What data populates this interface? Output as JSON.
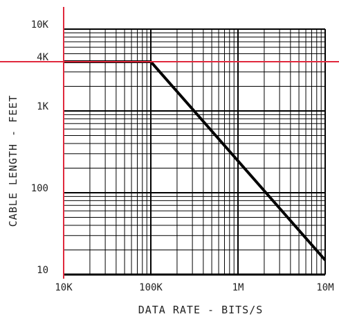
{
  "chart_data": {
    "type": "line",
    "title": "",
    "xlabel": "DATA RATE  -  BITS/S",
    "ylabel": "CABLE LENGTH - FEET",
    "xscale": "log",
    "yscale": "log",
    "xlim": [
      10000,
      10000000
    ],
    "ylim": [
      10,
      10000
    ],
    "grid": true,
    "x_tick_labels": [
      {
        "value": 10000,
        "label": "10K"
      },
      {
        "value": 100000,
        "label": "100K"
      },
      {
        "value": 1000000,
        "label": "1M"
      },
      {
        "value": 10000000,
        "label": "10M"
      }
    ],
    "y_tick_labels": [
      {
        "value": 10,
        "label": "10"
      },
      {
        "value": 100,
        "label": "100"
      },
      {
        "value": 1000,
        "label": "1K"
      },
      {
        "value": 4000,
        "label": "4K"
      },
      {
        "value": 10000,
        "label": "10K"
      }
    ],
    "series": [
      {
        "x": [
          10000,
          100000,
          10000000
        ],
        "y": [
          4000,
          4000,
          15
        ],
        "color": "#000000"
      }
    ],
    "reference_lines": [
      {
        "axis": "y",
        "value": 4000,
        "color": "#e0283c"
      },
      {
        "axis": "x",
        "value": 10000,
        "color": "#e0283c"
      }
    ],
    "colors": {
      "grid": "#000000",
      "curve": "#000000",
      "reference": "#e0283c",
      "text": "#222222"
    }
  }
}
